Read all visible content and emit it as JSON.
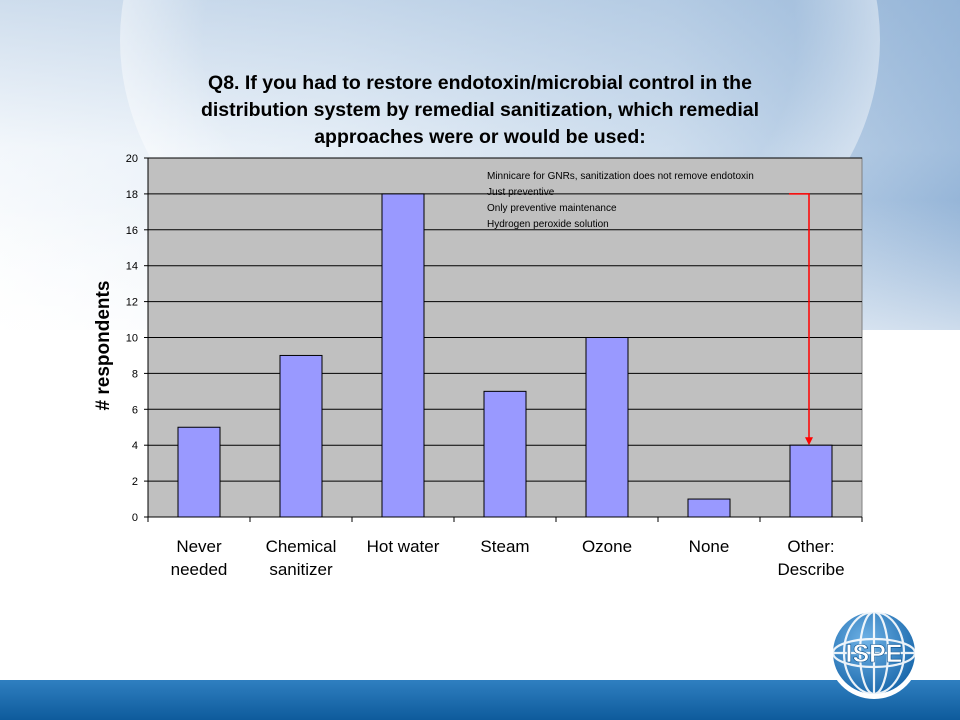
{
  "slide": {
    "title_lines": [
      "Q8. If you had to restore endotoxin/microbial control in the",
      "distribution system by remedial sanitization, which remedial",
      "approaches were or would be used:"
    ],
    "logo_text": "ISPE",
    "colors": {
      "bar_fill": "#9999ff",
      "plot_bg": "#c0c0c0",
      "bottom_bar": "#0e5b9c",
      "arrow": "#ff0000"
    }
  },
  "chart_data": {
    "type": "bar",
    "title": "",
    "ylabel": "# respondents",
    "xlabel": "",
    "ylim": [
      0,
      20
    ],
    "y_ticks": [
      0,
      2,
      4,
      6,
      8,
      10,
      12,
      14,
      16,
      18,
      20
    ],
    "grid": true,
    "categories": [
      [
        "Never",
        "needed"
      ],
      [
        "Chemical",
        "sanitizer"
      ],
      [
        "Hot water"
      ],
      [
        "Steam"
      ],
      [
        "Ozone"
      ],
      [
        "None"
      ],
      [
        "Other:",
        "Describe"
      ]
    ],
    "values": [
      5,
      9,
      18,
      7,
      10,
      1,
      4
    ],
    "annotation": {
      "lines": [
        "Minnicare for GNRs, sanitization does not remove endotoxin",
        "Just preventive",
        "Only preventive maintenance",
        "Hydrogen peroxide solution"
      ],
      "points_to_category": "Other: Describe"
    }
  }
}
